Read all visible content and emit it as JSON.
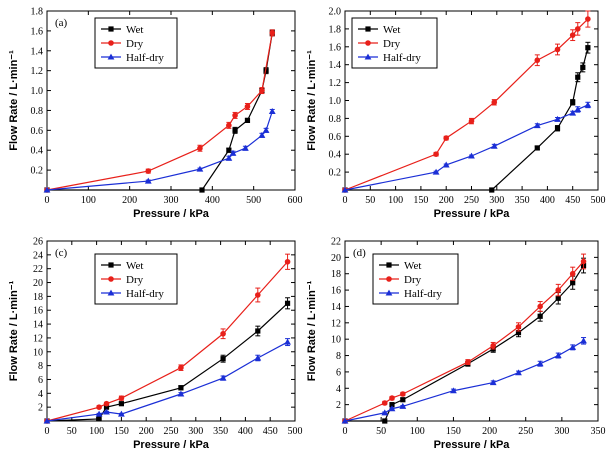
{
  "colors": {
    "Wet": "#000000",
    "Dry": "#e8201a",
    "Half-dry": "#1b2fd6"
  },
  "markers": {
    "Wet": "square",
    "Dry": "circle",
    "Half-dry": "triangle"
  },
  "chart_data": [
    {
      "type": "line",
      "panel_label": "(a)",
      "xlabel": "Pressure / kPa",
      "ylabel": "Flow Rate / L·min⁻¹",
      "xlim": [
        0,
        600
      ],
      "ylim": [
        0,
        1.8
      ],
      "xticks": [
        0,
        100,
        200,
        300,
        400,
        500,
        600
      ],
      "yticks": [
        0.2,
        0.4,
        0.6,
        0.8,
        1.0,
        1.2,
        1.4,
        1.6,
        1.8
      ],
      "xtick_labels": [
        "0",
        "100",
        "200",
        "300",
        "400",
        "500",
        "600"
      ],
      "ytick_labels": [
        "0.2",
        "0.4",
        "0.6",
        "0.8",
        "1.0",
        "1.2",
        "1.4",
        "1.6",
        "1.8"
      ],
      "legend": [
        "Wet",
        "Dry",
        "Half-dry"
      ],
      "series": [
        {
          "name": "Wet",
          "x": [
            0,
            375,
            440,
            455,
            485,
            520,
            530,
            545
          ],
          "y": [
            0,
            0,
            0.4,
            0.6,
            0.7,
            1.0,
            1.2,
            1.58
          ],
          "err": [
            0,
            0,
            0.02,
            0.03,
            0.02,
            0.02,
            0.03,
            0.03
          ]
        },
        {
          "name": "Dry",
          "x": [
            0,
            245,
            370,
            440,
            455,
            485,
            520,
            545
          ],
          "y": [
            0,
            0.19,
            0.42,
            0.65,
            0.75,
            0.84,
            1.0,
            1.58
          ],
          "err": [
            0,
            0.02,
            0.03,
            0.03,
            0.03,
            0.03,
            0.03,
            0.03
          ]
        },
        {
          "name": "Half-dry",
          "x": [
            0,
            245,
            370,
            440,
            450,
            480,
            520,
            530,
            545
          ],
          "y": [
            0,
            0.09,
            0.21,
            0.32,
            0.37,
            0.42,
            0.55,
            0.6,
            0.79
          ],
          "err": [
            0,
            0.01,
            0.01,
            0.02,
            0.02,
            0.02,
            0.02,
            0.02,
            0.02
          ]
        }
      ]
    },
    {
      "type": "line",
      "panel_label": "(b)",
      "xlabel": "Pressure / kPa",
      "ylabel": "Flow Rate / L·min⁻¹",
      "xlim": [
        0,
        500
      ],
      "ylim": [
        0,
        2.0
      ],
      "xticks": [
        0,
        50,
        100,
        150,
        200,
        250,
        300,
        350,
        400,
        450,
        500
      ],
      "yticks": [
        0.2,
        0.4,
        0.6,
        0.8,
        1.0,
        1.2,
        1.4,
        1.6,
        1.8,
        2.0
      ],
      "xtick_labels": [
        "0",
        "50",
        "100",
        "150",
        "200",
        "250",
        "300",
        "350",
        "400",
        "450",
        "500"
      ],
      "ytick_labels": [
        "0.2",
        "0.4",
        "0.6",
        "0.8",
        "1.0",
        "1.2",
        "1.4",
        "1.6",
        "1.8",
        "2.0"
      ],
      "legend": [
        "Wet",
        "Dry",
        "Half-dry"
      ],
      "series": [
        {
          "name": "Wet",
          "x": [
            0,
            290,
            380,
            420,
            450,
            460,
            470,
            480
          ],
          "y": [
            0,
            0,
            0.47,
            0.69,
            0.98,
            1.26,
            1.37,
            1.59
          ],
          "err": [
            0,
            0,
            0.02,
            0.03,
            0.03,
            0.05,
            0.05,
            0.06
          ]
        },
        {
          "name": "Dry",
          "x": [
            0,
            180,
            200,
            250,
            295,
            380,
            420,
            450,
            460,
            480
          ],
          "y": [
            0,
            0.4,
            0.58,
            0.77,
            0.98,
            1.45,
            1.57,
            1.73,
            1.8,
            1.91
          ],
          "err": [
            0,
            0.02,
            0.02,
            0.03,
            0.03,
            0.06,
            0.06,
            0.06,
            0.07,
            0.09
          ]
        },
        {
          "name": "Half-dry",
          "x": [
            0,
            180,
            200,
            250,
            295,
            380,
            420,
            450,
            460,
            480
          ],
          "y": [
            0,
            0.2,
            0.28,
            0.38,
            0.49,
            0.72,
            0.79,
            0.86,
            0.9,
            0.95
          ],
          "err": [
            0,
            0.01,
            0.01,
            0.01,
            0.02,
            0.02,
            0.02,
            0.02,
            0.03,
            0.03
          ]
        }
      ]
    },
    {
      "type": "line",
      "panel_label": "(c)",
      "xlabel": "Pressure / kPa",
      "ylabel": "Flow Rate / L·min⁻¹",
      "xlim": [
        0,
        500
      ],
      "ylim": [
        0,
        26
      ],
      "xticks": [
        0,
        50,
        100,
        150,
        200,
        250,
        300,
        350,
        400,
        450,
        500
      ],
      "yticks": [
        2,
        4,
        6,
        8,
        10,
        12,
        14,
        16,
        18,
        20,
        22,
        24,
        26
      ],
      "xtick_labels": [
        "0",
        "50",
        "100",
        "150",
        "200",
        "250",
        "300",
        "350",
        "400",
        "450",
        "500"
      ],
      "ytick_labels": [
        "2",
        "4",
        "6",
        "8",
        "10",
        "12",
        "14",
        "16",
        "18",
        "20",
        "22",
        "24",
        "26"
      ],
      "legend": [
        "Wet",
        "Dry",
        "Half-dry"
      ],
      "series": [
        {
          "name": "Wet",
          "x": [
            0,
            105,
            120,
            150,
            270,
            355,
            425,
            485
          ],
          "y": [
            0,
            0.3,
            2.0,
            2.5,
            4.8,
            9.0,
            13.0,
            17.0
          ],
          "err": [
            0,
            0.1,
            0.2,
            0.2,
            0.3,
            0.5,
            0.7,
            0.8
          ]
        },
        {
          "name": "Dry",
          "x": [
            0,
            105,
            120,
            150,
            270,
            355,
            425,
            485
          ],
          "y": [
            0,
            2.0,
            2.5,
            3.3,
            7.7,
            12.6,
            18.2,
            23.0
          ],
          "err": [
            0,
            0.2,
            0.2,
            0.3,
            0.4,
            0.7,
            1.0,
            1.1
          ]
        },
        {
          "name": "Half-dry",
          "x": [
            0,
            105,
            120,
            150,
            270,
            355,
            425,
            485
          ],
          "y": [
            0,
            1.0,
            1.3,
            1.0,
            3.9,
            6.2,
            9.1,
            11.4
          ],
          "err": [
            0,
            0.1,
            0.1,
            0.1,
            0.2,
            0.3,
            0.4,
            0.5
          ]
        }
      ]
    },
    {
      "type": "line",
      "panel_label": "(d)",
      "xlabel": "Pressure / kPa",
      "ylabel": "Flow Rate / L·min⁻¹",
      "xlim": [
        0,
        350
      ],
      "ylim": [
        0,
        22
      ],
      "xticks": [
        0,
        50,
        100,
        150,
        200,
        250,
        300,
        350
      ],
      "yticks": [
        2,
        4,
        6,
        8,
        10,
        12,
        14,
        16,
        18,
        20,
        22
      ],
      "xtick_labels": [
        "0",
        "50",
        "100",
        "150",
        "200",
        "250",
        "300",
        "350"
      ],
      "ytick_labels": [
        "2",
        "4",
        "6",
        "8",
        "10",
        "12",
        "14",
        "16",
        "18",
        "20",
        "22"
      ],
      "legend": [
        "Wet",
        "Dry",
        "Half-dry"
      ],
      "series": [
        {
          "name": "Wet",
          "x": [
            0,
            55,
            65,
            80,
            170,
            205,
            240,
            270,
            295,
            315,
            330
          ],
          "y": [
            0,
            0,
            2.0,
            2.6,
            7.0,
            8.8,
            10.8,
            12.8,
            15.0,
            16.9,
            19.0
          ],
          "err": [
            0,
            0,
            0.2,
            0.2,
            0.3,
            0.4,
            0.5,
            0.6,
            0.7,
            0.8,
            0.9
          ]
        },
        {
          "name": "Dry",
          "x": [
            0,
            55,
            65,
            80,
            170,
            205,
            240,
            270,
            295,
            315,
            330
          ],
          "y": [
            0,
            2.2,
            2.8,
            3.3,
            7.2,
            9.2,
            11.5,
            14.0,
            16.0,
            18.0,
            19.5
          ],
          "err": [
            0,
            0.2,
            0.2,
            0.2,
            0.3,
            0.4,
            0.5,
            0.6,
            0.7,
            0.8,
            0.9
          ]
        },
        {
          "name": "Half-dry",
          "x": [
            0,
            55,
            65,
            80,
            150,
            205,
            240,
            270,
            295,
            315,
            330
          ],
          "y": [
            0,
            1.0,
            1.5,
            1.8,
            3.7,
            4.7,
            5.9,
            7.0,
            8.0,
            9.0,
            9.8
          ],
          "err": [
            0,
            0.1,
            0.1,
            0.1,
            0.2,
            0.2,
            0.2,
            0.3,
            0.3,
            0.3,
            0.4
          ]
        }
      ]
    }
  ]
}
